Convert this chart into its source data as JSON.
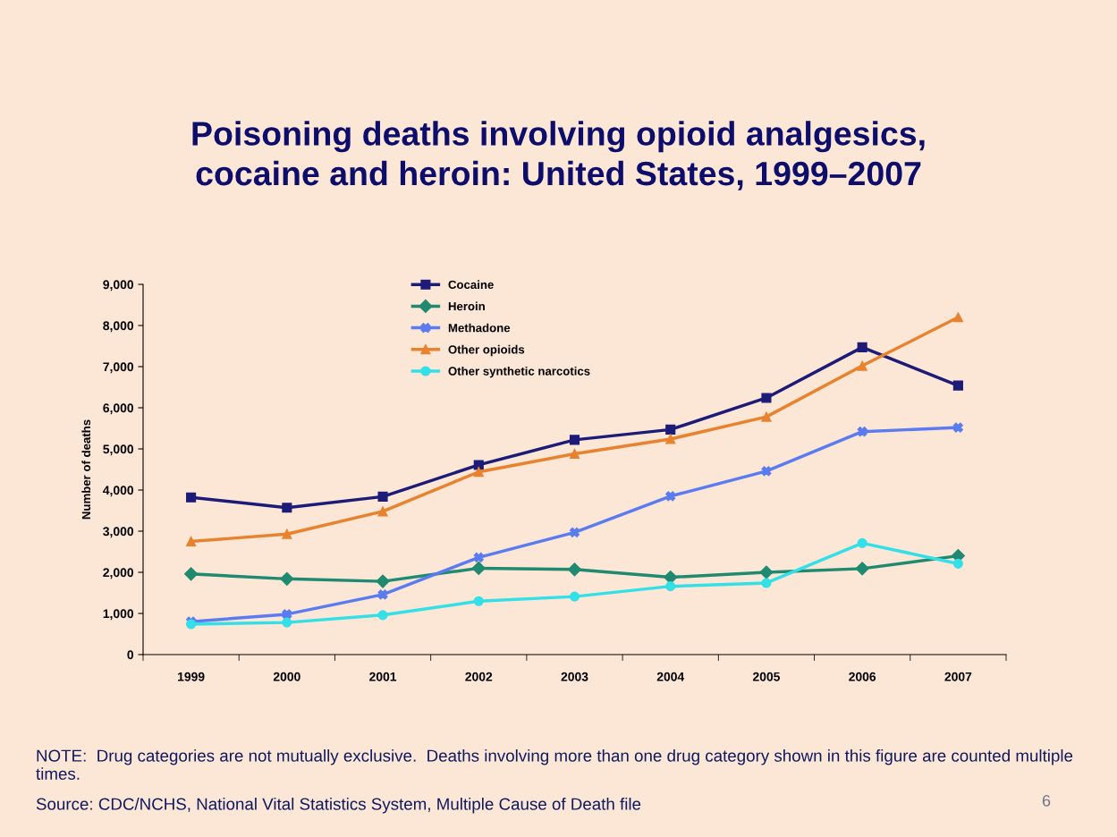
{
  "chart_data": {
    "type": "line",
    "title": "Poisoning deaths involving opioid analgesics,\ncocaine and heroin: United States, 1999–2007",
    "ylabel": "Number of deaths",
    "categories": [
      "1999",
      "2000",
      "2001",
      "2002",
      "2003",
      "2004",
      "2005",
      "2006",
      "2007"
    ],
    "series": [
      {
        "name": "Cocaine",
        "color": "#1c1c78",
        "marker": "square",
        "values": [
          3820,
          3570,
          3840,
          4610,
          5220,
          5470,
          6240,
          7470,
          6540
        ]
      },
      {
        "name": "Heroin",
        "color": "#1f8a70",
        "marker": "diamond",
        "values": [
          1960,
          1840,
          1780,
          2100,
          2070,
          1880,
          2000,
          2090,
          2400
        ]
      },
      {
        "name": "Methadone",
        "color": "#5b7cf0",
        "marker": "cross",
        "values": [
          800,
          980,
          1460,
          2360,
          2970,
          3850,
          4460,
          5420,
          5520
        ]
      },
      {
        "name": "Other opioids",
        "color": "#e9822e",
        "marker": "triangle",
        "values": [
          2750,
          2930,
          3480,
          4440,
          4880,
          5240,
          5780,
          7020,
          8200
        ]
      },
      {
        "name": "Other synthetic narcotics",
        "color": "#33e0e8",
        "marker": "circle",
        "values": [
          740,
          780,
          960,
          1300,
          1410,
          1660,
          1740,
          2710,
          2210
        ]
      }
    ],
    "ylim": [
      0,
      9000
    ],
    "yticks": [
      {
        "value": 0,
        "label": "0"
      },
      {
        "value": 1000,
        "label": "1,000"
      },
      {
        "value": 2000,
        "label": "2,000"
      },
      {
        "value": 3000,
        "label": "3,000"
      },
      {
        "value": 4000,
        "label": "4,000"
      },
      {
        "value": 5000,
        "label": "5,000"
      },
      {
        "value": 6000,
        "label": "6,000"
      },
      {
        "value": 7000,
        "label": "7,000"
      },
      {
        "value": 8000,
        "label": "8,000"
      },
      {
        "value": 9000,
        "label": "9,000"
      }
    ],
    "grid": false,
    "legend": "top",
    "line_style": "solid",
    "annotations": [
      "NOTE:  Drug categories are not mutually exclusive.  Deaths involving more than one drug category shown in this figure are counted multiple times.",
      "Source: CDC/NCHS, National Vital Statistics System, Multiple Cause of Death file",
      "6"
    ]
  }
}
